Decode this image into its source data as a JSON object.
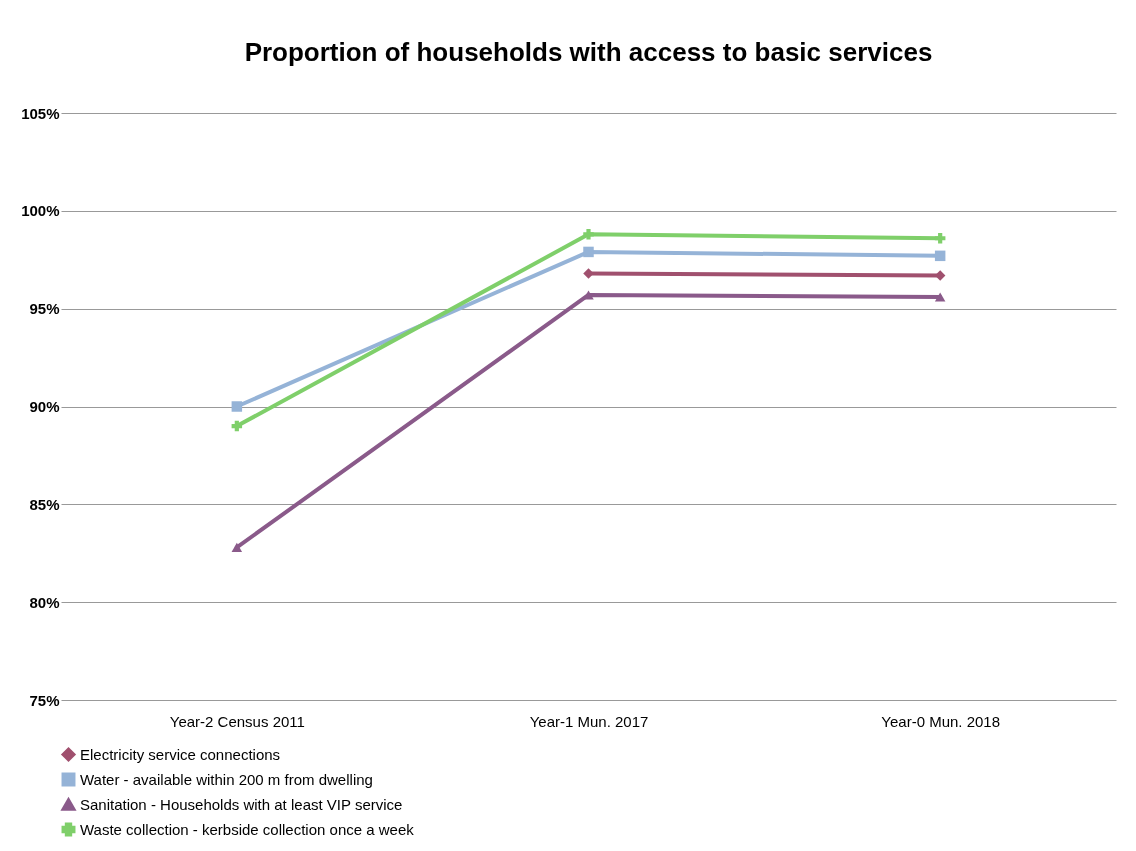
{
  "chart_data": {
    "type": "line",
    "title": "Proportion of households with access to basic services",
    "categories": [
      "Year-2  Census 2011",
      "Year-1  Mun. 2017",
      "Year-0  Mun. 2018"
    ],
    "series": [
      {
        "name": "Electricity service connections",
        "color": "#a0506e",
        "marker": "diamond",
        "values": [
          null,
          96.8,
          96.7
        ]
      },
      {
        "name": "Water - available within 200 m from dwelling",
        "color": "#95b3d7",
        "marker": "square",
        "values": [
          90,
          97.9,
          97.7
        ]
      },
      {
        "name": "Sanitation - Households with at least VIP service",
        "color": "#8a5a8a",
        "marker": "triangle",
        "values": [
          82.8,
          95.7,
          95.6
        ]
      },
      {
        "name": "Waste collection - kerbside collection once a week",
        "color": "#7fcf6a",
        "marker": "cross",
        "values": [
          89,
          98.8,
          98.6
        ]
      }
    ],
    "ylim": [
      75,
      105
    ],
    "yticks": [
      {
        "value": 75,
        "label": "75%"
      },
      {
        "value": 80,
        "label": "80%"
      },
      {
        "value": 85,
        "label": "85%"
      },
      {
        "value": 90,
        "label": "90%"
      },
      {
        "value": 95,
        "label": "95%"
      },
      {
        "value": 100,
        "label": "100%"
      },
      {
        "value": 105,
        "label": "105%"
      }
    ],
    "grid": "y",
    "legend": "bottom",
    "line_style": "solid"
  }
}
